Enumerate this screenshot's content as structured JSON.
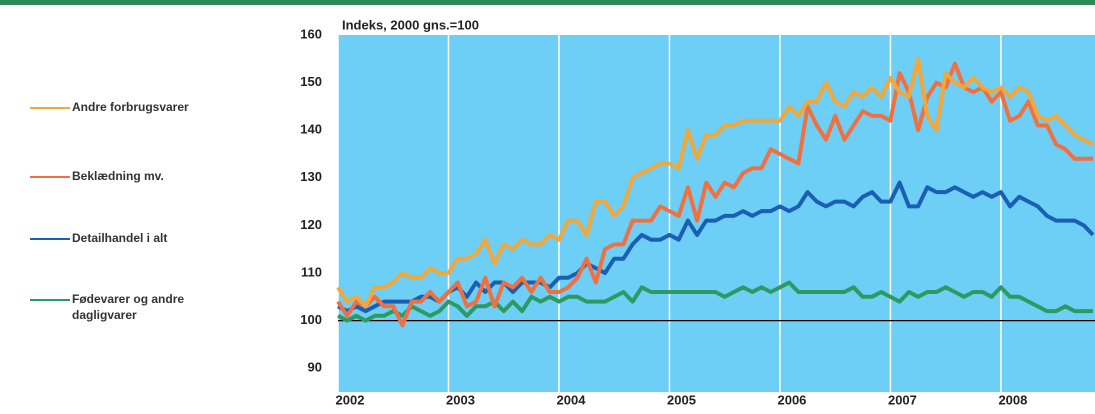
{
  "chart_data": {
    "type": "line",
    "title": "Indeks, 2000 gns.=100",
    "categories": [
      "2002",
      null,
      null,
      null,
      null,
      null,
      null,
      null,
      null,
      null,
      null,
      null,
      "2003",
      null,
      null,
      null,
      null,
      null,
      null,
      null,
      null,
      null,
      null,
      null,
      "2004",
      null,
      null,
      null,
      null,
      null,
      null,
      null,
      null,
      null,
      null,
      null,
      "2005",
      null,
      null,
      null,
      null,
      null,
      null,
      null,
      null,
      null,
      null,
      null,
      "2006",
      null,
      null,
      null,
      null,
      null,
      null,
      null,
      null,
      null,
      null,
      null,
      "2007",
      null,
      null,
      null,
      null,
      null,
      null,
      null,
      null,
      null,
      null,
      null,
      "2008",
      null,
      null,
      null,
      null,
      null,
      null,
      null,
      null,
      null,
      null
    ],
    "ylim": [
      85,
      160
    ],
    "yticks": [
      90,
      100,
      110,
      120,
      130,
      140,
      150,
      160
    ],
    "reference_line": 100,
    "background": "#6dcff6",
    "series": [
      {
        "name": "Andre forbrugsvarer",
        "color": "#f2a73b",
        "values": [
          107,
          104,
          105,
          103,
          107,
          107,
          108,
          110,
          109,
          109,
          111,
          110,
          110,
          113,
          113,
          114,
          117,
          112,
          116,
          115,
          117,
          116,
          116,
          118,
          117,
          121,
          121,
          118,
          125,
          125,
          122,
          124,
          130,
          131,
          132,
          133,
          133,
          132,
          140,
          134,
          139,
          139,
          141,
          141,
          142,
          142,
          142,
          142,
          142,
          145,
          143,
          146,
          146,
          150,
          146,
          145,
          148,
          147,
          149,
          147,
          151,
          148,
          147,
          155,
          143,
          140,
          152,
          150,
          149,
          151,
          149,
          148,
          149,
          147,
          149,
          148,
          143,
          142,
          143,
          141,
          139,
          138,
          137
        ]
      },
      {
        "name": "Beklædning mv.",
        "color": "#f07040",
        "values": [
          104,
          101,
          104,
          103,
          105,
          103,
          103,
          99,
          104,
          104,
          106,
          104,
          106,
          108,
          103,
          104,
          109,
          103,
          108,
          107,
          109,
          106,
          109,
          106,
          106,
          107,
          109,
          113,
          108,
          115,
          116,
          116,
          121,
          121,
          121,
          124,
          123,
          122,
          128,
          121,
          129,
          126,
          129,
          128,
          131,
          132,
          132,
          136,
          135,
          134,
          133,
          145,
          141,
          138,
          143,
          138,
          141,
          144,
          143,
          143,
          142,
          152,
          148,
          140,
          147,
          150,
          149,
          154,
          149,
          148,
          149,
          146,
          148,
          142,
          143,
          146,
          141,
          141,
          137,
          136,
          134,
          134,
          134
        ]
      },
      {
        "name": "Detailhandel i alt",
        "color": "#1a5fb4",
        "values": [
          103,
          102,
          103,
          102,
          103,
          104,
          104,
          104,
          104,
          105,
          105,
          104,
          106,
          107,
          105,
          108,
          106,
          108,
          108,
          106,
          108,
          108,
          108,
          107,
          109,
          109,
          110,
          112,
          111,
          110,
          113,
          113,
          116,
          118,
          117,
          117,
          118,
          117,
          121,
          118,
          121,
          121,
          122,
          122,
          123,
          122,
          123,
          123,
          124,
          123,
          124,
          127,
          125,
          124,
          125,
          125,
          124,
          126,
          127,
          125,
          125,
          129,
          124,
          124,
          128,
          127,
          127,
          128,
          127,
          126,
          127,
          126,
          127,
          124,
          126,
          125,
          124,
          122,
          121,
          121,
          121,
          120,
          118
        ]
      },
      {
        "name": "Fødevarer og andre dagligvarer",
        "color": "#2e9a63",
        "values": [
          101,
          100,
          101,
          100,
          101,
          101,
          102,
          101,
          103,
          102,
          101,
          102,
          104,
          103,
          101,
          103,
          103,
          104,
          102,
          104,
          102,
          105,
          104,
          105,
          104,
          105,
          105,
          104,
          104,
          104,
          105,
          106,
          104,
          107,
          106,
          106,
          106,
          106,
          106,
          106,
          106,
          106,
          105,
          106,
          107,
          106,
          107,
          106,
          107,
          108,
          106,
          106,
          106,
          106,
          106,
          106,
          107,
          105,
          105,
          106,
          105,
          104,
          106,
          105,
          106,
          106,
          107,
          106,
          105,
          106,
          106,
          105,
          107,
          105,
          105,
          104,
          103,
          102,
          102,
          103,
          102,
          102,
          102
        ]
      }
    ]
  }
}
